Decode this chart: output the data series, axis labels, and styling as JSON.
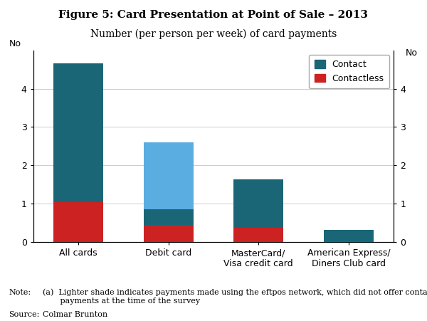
{
  "title": "Figure 5: Card Presentation at Point of Sale – 2013",
  "subtitle": "Number (per person per week) of card payments",
  "categories": [
    "All cards",
    "Debit card",
    "MasterCard/\nVisa credit card",
    "American Express/\nDiners Club card"
  ],
  "contact_dark": [
    3.6,
    0.4,
    1.25,
    0.3
  ],
  "contactless_red": [
    1.05,
    0.45,
    0.38,
    0.02
  ],
  "eftpos_light": [
    0.0,
    1.75,
    0.0,
    0.0
  ],
  "color_contact": "#1a6677",
  "color_contactless": "#cc2222",
  "color_eftpos": "#5aade0",
  "ylim": [
    0,
    5.0
  ],
  "yticks": [
    0,
    1,
    2,
    3,
    4
  ],
  "ylabel_left": "No",
  "ylabel_right": "No",
  "note_text": "(a)  Lighter shade indicates payments made using the eftpos network, which did not offer contactless\n       payments at the time of the survey",
  "source_text": "Colmar Brunton",
  "legend_contact": "Contact",
  "legend_contactless": "Contactless",
  "legend_superscript": "(a)",
  "bg_color": "#ffffff",
  "title_fontsize": 11,
  "subtitle_fontsize": 10,
  "tick_fontsize": 9,
  "note_fontsize": 8
}
